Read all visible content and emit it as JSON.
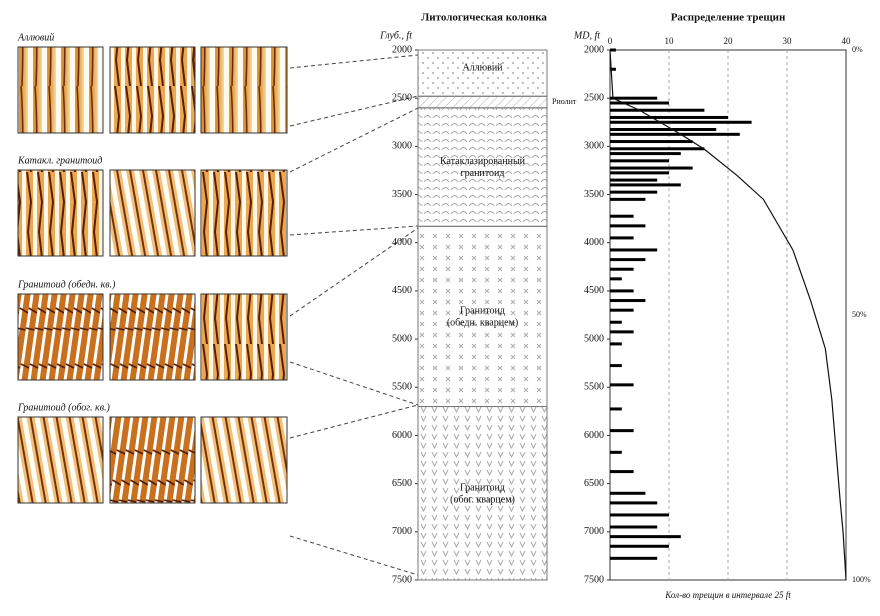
{
  "panels": [
    {
      "label": "Аллювий"
    },
    {
      "label": "Катакл. гранитоид"
    },
    {
      "label": "Гранитоид (обедн. кв.)"
    },
    {
      "label": "Гранитоид (обог. кв.)"
    }
  ],
  "chart_data": [
    {
      "type": "lithology",
      "title": "Литологическая колонка",
      "ylabel": "Глуб., ft",
      "ylim": [
        2000,
        7500
      ],
      "yticks": [
        2000,
        2500,
        3000,
        3500,
        4000,
        4500,
        5000,
        5500,
        6000,
        6500,
        7000,
        7500
      ],
      "layers": [
        {
          "name": "Аллювий",
          "top": 2000,
          "bottom": 2480,
          "pattern": "dots"
        },
        {
          "name": "Риолит",
          "top": 2480,
          "bottom": 2600,
          "pattern": "hatch"
        },
        {
          "name": "Катаклазированный гранитоид",
          "top": 2600,
          "bottom": 3830,
          "pattern": "arcs"
        },
        {
          "name": "Гранитоид (обедн. кварцем)",
          "top": 3830,
          "bottom": 5700,
          "pattern": "crosses"
        },
        {
          "name": "Гранитоид (обог. кварцем)",
          "top": 5700,
          "bottom": 7500,
          "pattern": "vees"
        }
      ]
    },
    {
      "type": "hbar",
      "title": "Распределение трещин",
      "ylabel": "MD, ft",
      "xlabel": "Кол-во трещин в интервале 25 ft",
      "xlim": [
        0,
        40
      ],
      "xticks": [
        0,
        10,
        20,
        30,
        40
      ],
      "ylim": [
        2000,
        7500
      ],
      "yticks": [
        2000,
        2500,
        3000,
        3500,
        4000,
        4500,
        5000,
        5500,
        6000,
        6500,
        7000,
        7500
      ],
      "grid": true,
      "color": "#000000",
      "depths": [
        2000,
        2200,
        2500,
        2550,
        2625,
        2700,
        2750,
        2825,
        2875,
        2950,
        3025,
        3075,
        3150,
        3225,
        3275,
        3350,
        3400,
        3475,
        3550,
        3725,
        3825,
        3950,
        4075,
        4175,
        4275,
        4375,
        4500,
        4600,
        4700,
        4825,
        4925,
        5050,
        5275,
        5475,
        5725,
        5950,
        6175,
        6375,
        6600,
        6700,
        6825,
        6950,
        7050,
        7150,
        7275
      ],
      "values": [
        1,
        1,
        8,
        10,
        16,
        20,
        24,
        18,
        22,
        14,
        16,
        12,
        10,
        14,
        10,
        8,
        12,
        8,
        6,
        4,
        6,
        4,
        8,
        6,
        4,
        2,
        4,
        6,
        4,
        2,
        4,
        2,
        2,
        4,
        2,
        4,
        2,
        4,
        6,
        8,
        10,
        8,
        12,
        10,
        8
      ],
      "cumulative": {
        "depths": [
          2000,
          2500,
          2625,
          2875,
          3030,
          3300,
          3550,
          4075,
          4600,
          5100,
          5630,
          6150,
          6670,
          7000,
          7500
        ],
        "values": [
          0,
          0.5,
          5,
          12,
          16,
          21.5,
          26,
          31,
          34,
          36.5,
          37.6,
          38.3,
          39,
          39.5,
          40
        ]
      },
      "y2lim": [
        0,
        100
      ],
      "y2ticks": [
        {
          "value": 0,
          "label": "0%"
        },
        {
          "value": 50,
          "label": "50%"
        },
        {
          "value": 100,
          "label": "100%"
        }
      ]
    }
  ]
}
